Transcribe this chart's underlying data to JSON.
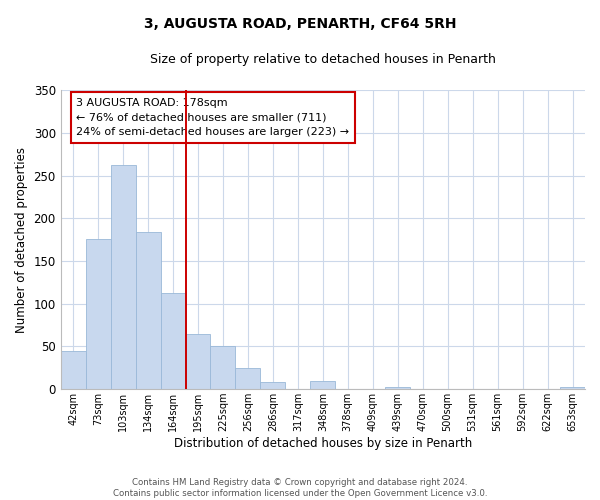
{
  "title": "3, AUGUSTA ROAD, PENARTH, CF64 5RH",
  "subtitle": "Size of property relative to detached houses in Penarth",
  "xlabel": "Distribution of detached houses by size in Penarth",
  "ylabel": "Number of detached properties",
  "footer_line1": "Contains HM Land Registry data © Crown copyright and database right 2024.",
  "footer_line2": "Contains public sector information licensed under the Open Government Licence v3.0.",
  "bar_labels": [
    "42sqm",
    "73sqm",
    "103sqm",
    "134sqm",
    "164sqm",
    "195sqm",
    "225sqm",
    "256sqm",
    "286sqm",
    "317sqm",
    "348sqm",
    "378sqm",
    "409sqm",
    "439sqm",
    "470sqm",
    "500sqm",
    "531sqm",
    "561sqm",
    "592sqm",
    "622sqm",
    "653sqm"
  ],
  "bar_values": [
    45,
    176,
    262,
    184,
    113,
    65,
    50,
    25,
    8,
    0,
    9,
    0,
    0,
    2,
    0,
    0,
    0,
    0,
    0,
    0,
    2
  ],
  "bar_color": "#c8d8ee",
  "bar_edge_color": "#9ab8d8",
  "vline_x": 4.5,
  "vline_color": "#cc0000",
  "annotation_title": "3 AUGUSTA ROAD: 178sqm",
  "annotation_line1": "← 76% of detached houses are smaller (711)",
  "annotation_line2": "24% of semi-detached houses are larger (223) →",
  "annotation_box_color": "#ffffff",
  "annotation_box_edge": "#cc0000",
  "ylim": [
    0,
    350
  ],
  "yticks": [
    0,
    50,
    100,
    150,
    200,
    250,
    300,
    350
  ],
  "background_color": "#ffffff",
  "grid_color": "#ccd8ea"
}
